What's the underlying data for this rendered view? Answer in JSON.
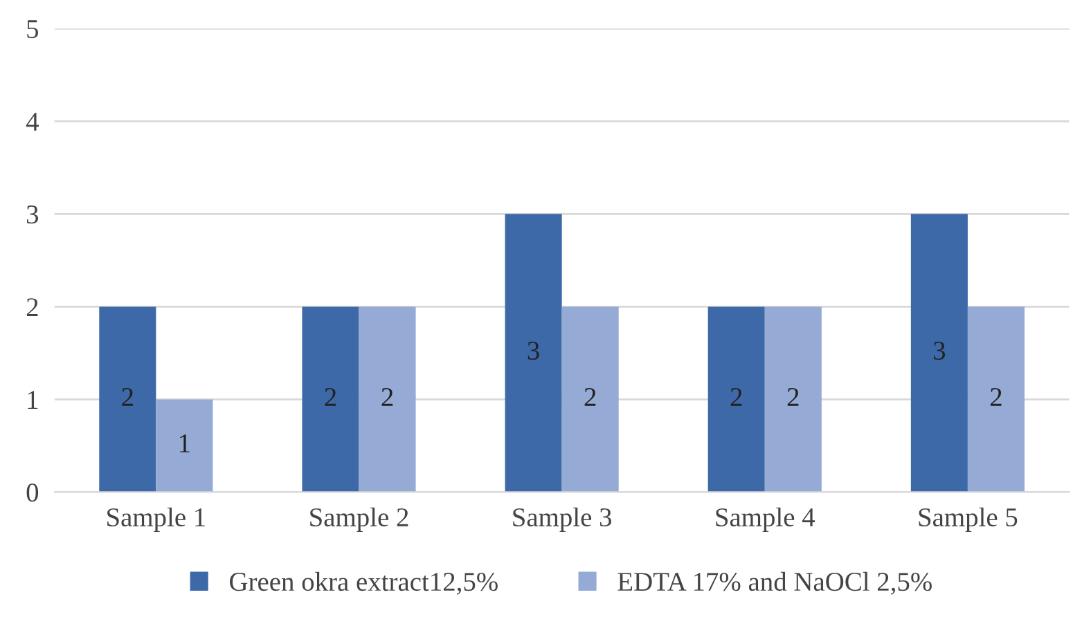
{
  "chart_data": {
    "type": "bar",
    "categories": [
      "Sample 1",
      "Sample 2",
      "Sample 3",
      "Sample 4",
      "Sample 5"
    ],
    "series": [
      {
        "name": "Green okra extract12,5%",
        "color": "#3d69a8",
        "values": [
          2,
          2,
          3,
          2,
          3
        ]
      },
      {
        "name": "EDTA 17% and NaOCl 2,5%",
        "color": "#95abd6",
        "values": [
          1,
          2,
          2,
          2,
          2
        ]
      }
    ],
    "ylim": [
      0,
      5
    ],
    "yticks": [
      0,
      1,
      2,
      3,
      4,
      5
    ],
    "grid": "y",
    "legend": "bottom",
    "data_labels": true
  }
}
